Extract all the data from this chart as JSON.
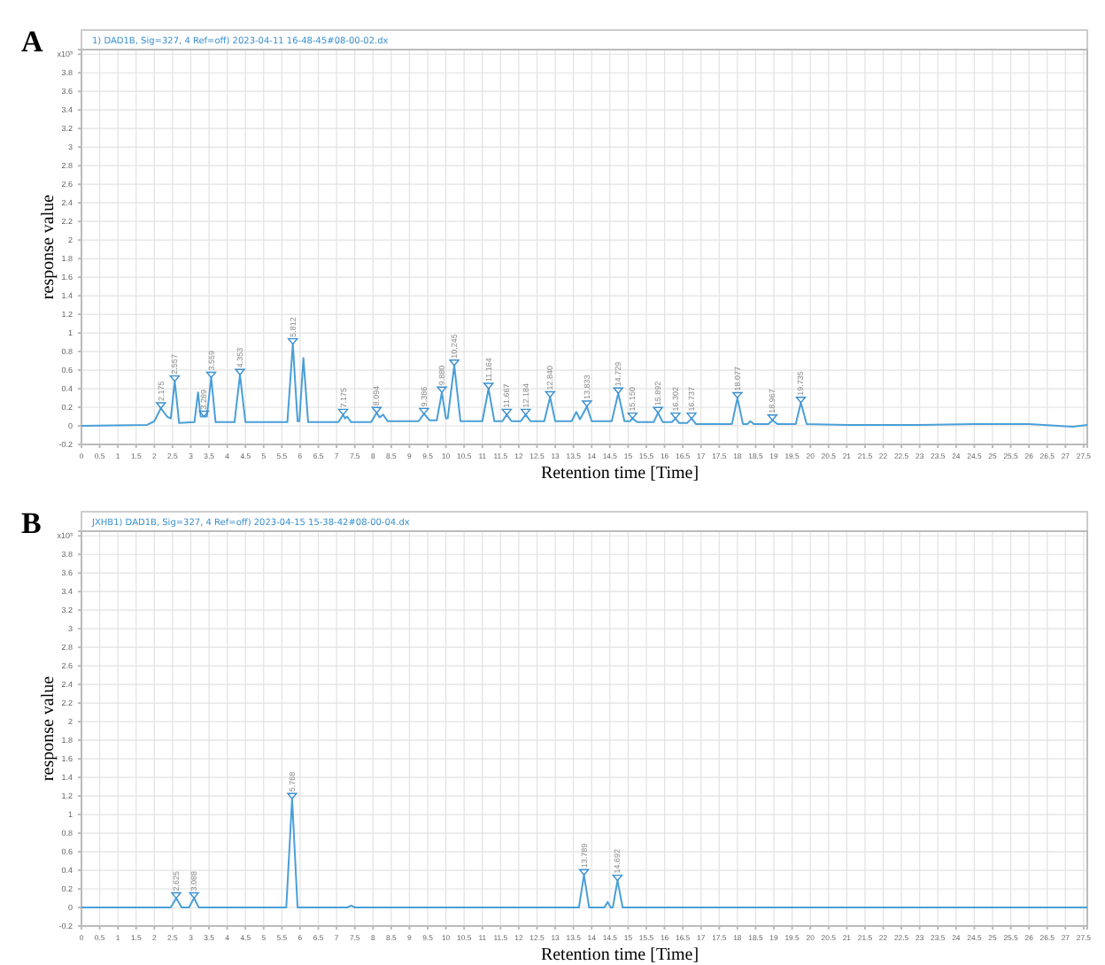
{
  "chart_data": [
    {
      "type": "line",
      "title": "A",
      "subtitle": "1) DAD1B, Sig=327, 4 Ref=off) 2023-04-11 16-48-45#08-00-02.dx",
      "xlabel": "Retention time [Time]",
      "ylabel": "response value",
      "xlim": [
        0,
        27.6
      ],
      "ylim": [
        -0.2,
        4.05
      ],
      "xticks": [
        0,
        0.5,
        1,
        1.5,
        2,
        2.5,
        3,
        3.5,
        4,
        4.5,
        5,
        5.5,
        6,
        6.5,
        7,
        7.5,
        8,
        8.5,
        9,
        9.5,
        10,
        10.5,
        11,
        11.5,
        12,
        12.5,
        13,
        13.5,
        14,
        14.5,
        15,
        15.5,
        16,
        16.5,
        17,
        17.5,
        18,
        18.5,
        19,
        19.5,
        20,
        20.5,
        21,
        21.5,
        22,
        22.5,
        23,
        23.5,
        24,
        24.5,
        25,
        25.5,
        26,
        26.5,
        27,
        27.5
      ],
      "yticks": [
        -0.2,
        0,
        0.2,
        0.4,
        0.6,
        0.8,
        1,
        1.2,
        1.4,
        1.6,
        1.8,
        2,
        2.2,
        2.4,
        2.6,
        2.8,
        3,
        3.2,
        3.4,
        3.6,
        3.8,
        {
          "value": 4,
          "label": "x10³"
        }
      ],
      "grid": true,
      "marker": "none",
      "line_style": "solid",
      "series": [
        {
          "color": "#4a9fd8",
          "x": [
            0,
            1.8,
            2.0,
            2.18,
            2.35,
            2.45,
            2.56,
            2.68,
            3.1,
            3.2,
            3.27,
            3.36,
            3.44,
            3.56,
            3.68,
            4.2,
            4.35,
            4.5,
            5.65,
            5.8,
            5.93,
            5.98,
            6.09,
            6.22,
            7.05,
            7.18,
            7.23,
            7.29,
            7.4,
            7.95,
            8.1,
            8.18,
            8.28,
            8.4,
            9.25,
            9.4,
            9.55,
            9.75,
            9.89,
            10.0,
            10.05,
            10.23,
            10.4,
            11.0,
            11.17,
            11.33,
            11.55,
            11.67,
            11.8,
            12.05,
            12.19,
            12.32,
            12.7,
            12.86,
            13.0,
            13.45,
            13.58,
            13.68,
            13.87,
            14.0,
            14.55,
            14.73,
            14.9,
            15.05,
            15.12,
            15.25,
            15.7,
            15.82,
            15.95,
            16.2,
            16.3,
            16.4,
            16.62,
            16.74,
            16.86,
            17.85,
            18.0,
            18.15,
            18.28,
            18.35,
            18.45,
            18.85,
            18.96,
            19.1,
            19.6,
            19.74,
            19.9,
            21,
            23,
            24.5,
            26,
            27.2,
            27.6
          ],
          "values": [
            0,
            0.01,
            0.05,
            0.19,
            0.1,
            0.08,
            0.48,
            0.03,
            0.04,
            0.36,
            0.1,
            0.1,
            0.1,
            0.52,
            0.04,
            0.04,
            0.55,
            0.04,
            0.04,
            0.88,
            0.05,
            0.05,
            0.73,
            0.04,
            0.04,
            0.12,
            0.08,
            0.1,
            0.04,
            0.04,
            0.14,
            0.09,
            0.12,
            0.05,
            0.05,
            0.13,
            0.06,
            0.06,
            0.36,
            0.08,
            0.08,
            0.65,
            0.05,
            0.05,
            0.4,
            0.05,
            0.05,
            0.12,
            0.05,
            0.05,
            0.12,
            0.05,
            0.05,
            0.31,
            0.05,
            0.05,
            0.15,
            0.07,
            0.21,
            0.05,
            0.05,
            0.35,
            0.05,
            0.05,
            0.08,
            0.04,
            0.04,
            0.14,
            0.04,
            0.04,
            0.08,
            0.03,
            0.03,
            0.08,
            0.02,
            0.02,
            0.3,
            0.02,
            0.02,
            0.05,
            0.02,
            0.02,
            0.06,
            0.02,
            0.02,
            0.25,
            0.02,
            0.01,
            0.01,
            0.02,
            0.02,
            -0.01,
            0.01
          ]
        }
      ],
      "annotations": [
        {
          "text": "2.175",
          "x": 2.18,
          "y": 0.19
        },
        {
          "text": "2.557",
          "x": 2.56,
          "y": 0.48
        },
        {
          "text": "3.289",
          "x": 3.36,
          "y": 0.1
        },
        {
          "text": "3.559",
          "x": 3.56,
          "y": 0.52
        },
        {
          "text": "4.353",
          "x": 4.35,
          "y": 0.55
        },
        {
          "text": "5.812",
          "x": 5.8,
          "y": 0.88
        },
        {
          "text": "7.175",
          "x": 7.18,
          "y": 0.12
        },
        {
          "text": "8.094",
          "x": 8.1,
          "y": 0.14
        },
        {
          "text": "9.386",
          "x": 9.4,
          "y": 0.13
        },
        {
          "text": "9.880",
          "x": 9.89,
          "y": 0.36
        },
        {
          "text": "10.245",
          "x": 10.23,
          "y": 0.65
        },
        {
          "text": "11.164",
          "x": 11.17,
          "y": 0.4
        },
        {
          "text": "11.667",
          "x": 11.67,
          "y": 0.12
        },
        {
          "text": "12.184",
          "x": 12.19,
          "y": 0.12
        },
        {
          "text": "12.840",
          "x": 12.86,
          "y": 0.31
        },
        {
          "text": "13.833",
          "x": 13.87,
          "y": 0.21
        },
        {
          "text": "14.729",
          "x": 14.73,
          "y": 0.35
        },
        {
          "text": "15.150",
          "x": 15.12,
          "y": 0.08
        },
        {
          "text": "15.892",
          "x": 15.82,
          "y": 0.14
        },
        {
          "text": "16.302",
          "x": 16.3,
          "y": 0.08
        },
        {
          "text": "16.737",
          "x": 16.74,
          "y": 0.08
        },
        {
          "text": "18.077",
          "x": 18.0,
          "y": 0.3
        },
        {
          "text": "18.967",
          "x": 18.96,
          "y": 0.06
        },
        {
          "text": "19.735",
          "x": 19.74,
          "y": 0.25
        }
      ]
    },
    {
      "type": "line",
      "title": "B",
      "subtitle": "JXHB1) DAD1B, Sig=327, 4 Ref=off) 2023-04-15 15-38-42#08-00-04.dx",
      "xlabel": "Retention time [Time]",
      "ylabel": "response value",
      "xlim": [
        0,
        27.6
      ],
      "ylim": [
        -0.2,
        4.05
      ],
      "xticks": [
        0,
        0.5,
        1,
        1.5,
        2,
        2.5,
        3,
        3.5,
        4,
        4.5,
        5,
        5.5,
        6,
        6.5,
        7,
        7.5,
        8,
        8.5,
        9,
        9.5,
        10,
        10.5,
        11,
        11.5,
        12,
        12.5,
        13,
        13.5,
        14,
        14.5,
        15,
        15.5,
        16,
        16.5,
        17,
        17.5,
        18,
        18.5,
        19,
        19.5,
        20,
        20.5,
        21,
        21.5,
        22,
        22.5,
        23,
        23.5,
        24,
        24.5,
        25,
        25.5,
        26,
        26.5,
        27,
        27.5
      ],
      "yticks": [
        -0.2,
        0,
        0.2,
        0.4,
        0.6,
        0.8,
        1,
        1.2,
        1.4,
        1.6,
        1.8,
        2,
        2.2,
        2.4,
        2.6,
        2.8,
        3,
        3.2,
        3.4,
        3.6,
        3.8,
        {
          "value": 4,
          "label": "x10³"
        }
      ],
      "grid": true,
      "marker": "none",
      "line_style": "solid",
      "series": [
        {
          "color": "#4a9fd8",
          "x": [
            0,
            2.45,
            2.6,
            2.75,
            2.95,
            3.09,
            3.22,
            5.62,
            5.78,
            5.93,
            7.3,
            7.4,
            7.5,
            13.65,
            13.79,
            13.93,
            14.35,
            14.44,
            14.52,
            14.58,
            14.71,
            14.85,
            27.6
          ],
          "values": [
            0,
            0,
            0.1,
            0,
            0,
            0.1,
            0,
            0,
            1.17,
            0,
            0,
            0.02,
            0,
            0,
            0.35,
            0,
            0,
            0.06,
            0,
            0,
            0.29,
            0,
            0
          ]
        }
      ],
      "annotations": [
        {
          "text": "2.625",
          "x": 2.6,
          "y": 0.1
        },
        {
          "text": "3.088",
          "x": 3.09,
          "y": 0.1
        },
        {
          "text": "5.768",
          "x": 5.78,
          "y": 1.17
        },
        {
          "text": "13.789",
          "x": 13.79,
          "y": 0.35
        },
        {
          "text": "14.692",
          "x": 14.71,
          "y": 0.29
        }
      ]
    }
  ]
}
